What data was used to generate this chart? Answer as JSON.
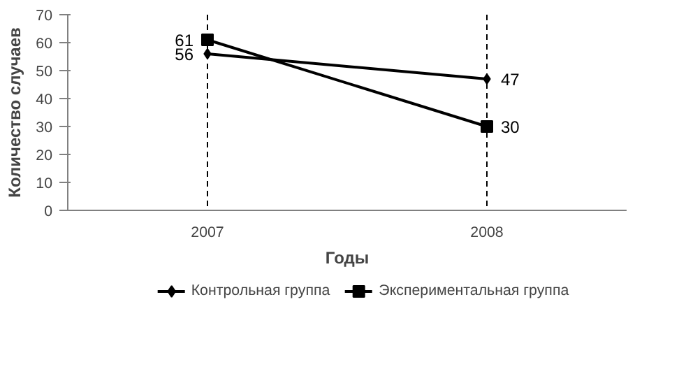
{
  "chart_data": {
    "type": "line",
    "xlabel": "Годы",
    "ylabel": "Количество случаев",
    "categories": [
      "2007",
      "2008"
    ],
    "series": [
      {
        "name": "Контрольная группа",
        "color": "#000000",
        "values": [
          56,
          47
        ],
        "marker": "diamond"
      },
      {
        "name": "Экспериментальная группа",
        "color": "#000000",
        "values": [
          61,
          30
        ],
        "marker": "square"
      }
    ],
    "ylim": [
      0,
      70
    ],
    "yticks": [
      0,
      10,
      20,
      30,
      40,
      50,
      60,
      70
    ],
    "ref_lines": [
      {
        "axis": "x",
        "value": "2007",
        "line_style": "dashed",
        "color": "#000000"
      },
      {
        "axis": "x",
        "value": "2008",
        "line_style": "dashed",
        "color": "#000000"
      }
    ],
    "data_labels": true,
    "grid": false,
    "legend": "bottom"
  }
}
